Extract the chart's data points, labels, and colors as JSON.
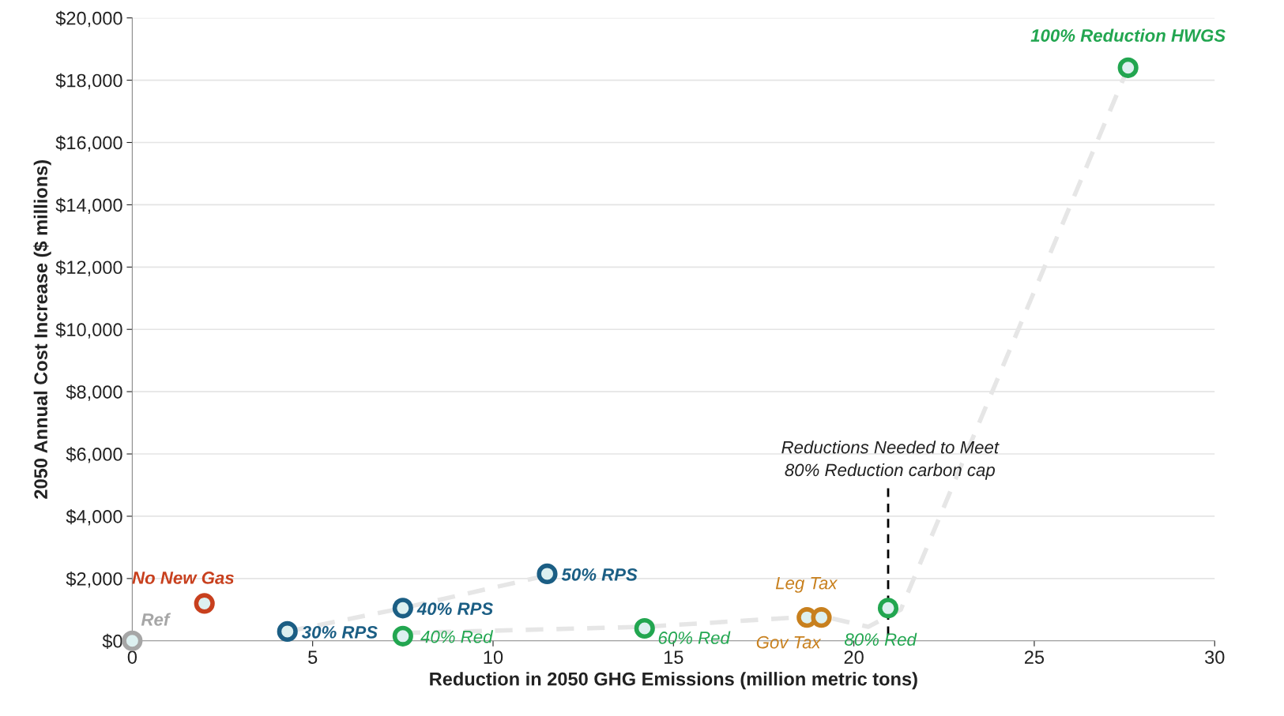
{
  "chart_data": {
    "type": "scatter",
    "xlabel": "Reduction in 2050 GHG Emissions (million metric tons)",
    "ylabel": "2050 Annual Cost Increase ($ millions)",
    "xlim": [
      0,
      30
    ],
    "xticks": [
      0,
      5,
      10,
      15,
      20,
      25,
      30
    ],
    "ylim": [
      0,
      20000
    ],
    "yticks": [
      {
        "value": 0,
        "label": "$0"
      },
      {
        "value": 2000,
        "label": "$2,000"
      },
      {
        "value": 4000,
        "label": "$4,000"
      },
      {
        "value": 6000,
        "label": "$6,000"
      },
      {
        "value": 8000,
        "label": "$8,000"
      },
      {
        "value": 10000,
        "label": "$10,000"
      },
      {
        "value": 12000,
        "label": "$12,000"
      },
      {
        "value": 14000,
        "label": "$14,000"
      },
      {
        "value": 16000,
        "label": "$16,000"
      },
      {
        "value": 18000,
        "label": "$18,000"
      },
      {
        "value": 20000,
        "label": "$20,000"
      }
    ],
    "grid": "y",
    "marker": "circle",
    "series": [
      {
        "type": "line",
        "color": "#e6e6e6",
        "line_style": "dashed",
        "marker": "none",
        "x": [
          4.3,
          7.5,
          11.5
        ],
        "values": [
          300,
          1050,
          2100
        ]
      },
      {
        "type": "line",
        "color": "#e6e6e6",
        "line_style": "dashed",
        "marker": "none",
        "x": [
          7.5,
          14.2,
          19.1,
          20.4,
          21.3,
          27.6
        ],
        "values": [
          250,
          450,
          800,
          450,
          1000,
          18400
        ]
      },
      {
        "type": "line",
        "color": "#000000",
        "line_style": "dashed",
        "marker": "none",
        "x": [
          20.95,
          20.95
        ],
        "values": [
          4900,
          0
        ]
      },
      {
        "name": "Ref",
        "color": "#a6a6a6",
        "x": [
          0
        ],
        "values": [
          0
        ]
      },
      {
        "name": "No New Gas",
        "color": "#c8401e",
        "x": [
          2.0
        ],
        "values": [
          1200
        ]
      },
      {
        "name": "30% RPS",
        "color": "#1b5e84",
        "x": [
          4.3
        ],
        "values": [
          300
        ]
      },
      {
        "name": "40% RPS",
        "color": "#1b5e84",
        "x": [
          7.5
        ],
        "values": [
          1050
        ]
      },
      {
        "name": "50% RPS",
        "color": "#1b5e84",
        "x": [
          11.5
        ],
        "values": [
          2150
        ]
      },
      {
        "name": "40% Red",
        "color": "#22a650",
        "x": [
          7.5
        ],
        "values": [
          150
        ]
      },
      {
        "name": "60% Red",
        "color": "#22a650",
        "x": [
          14.2
        ],
        "values": [
          400
        ]
      },
      {
        "name": "Gov Tax",
        "color": "#c8801e",
        "x": [
          18.7
        ],
        "values": [
          750
        ]
      },
      {
        "name": "Leg Tax",
        "color": "#c8801e",
        "x": [
          19.1
        ],
        "values": [
          750
        ]
      },
      {
        "name": "80% Red",
        "color": "#22a650",
        "x": [
          20.95
        ],
        "values": [
          1050
        ]
      },
      {
        "name": "100% Reduction HWGS",
        "color": "#22a650",
        "x": [
          27.6
        ],
        "values": [
          18400
        ]
      }
    ],
    "annotations": [
      "Reductions Needed to Meet\n80% Reduction carbon cap"
    ]
  }
}
